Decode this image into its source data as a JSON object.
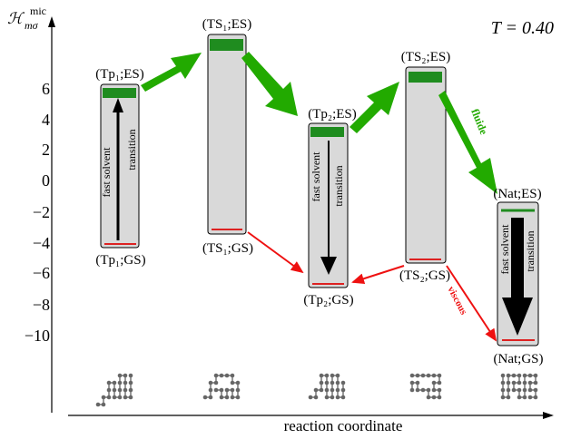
{
  "header": {
    "temperature": "T = 0.40"
  },
  "axes": {
    "y_label_main": "ℋ",
    "y_label_super": "mic",
    "y_label_sub": "mσ",
    "y_ticks": [
      "6",
      "4",
      "2",
      "0",
      "−2",
      "−4",
      "−6",
      "−8",
      "−10"
    ],
    "x_label": "reaction coordinate"
  },
  "states": {
    "tp1_es": "(Tp₁;ES)",
    "tp1_gs": "(Tp₁;GS)",
    "ts1_es": "(TS₁;ES)",
    "ts1_gs": "(TS₁;GS)",
    "tp2_es": "(Tp₂;ES)",
    "tp2_gs": "(Tp₂;GS)",
    "ts2_es": "(TS₂;ES)",
    "ts2_gs": "(TS₂;GS)",
    "nat_es": "(Nat;ES)",
    "nat_gs": "(Nat;GS)"
  },
  "annotations": {
    "fast_solvent": "fast solvent",
    "transition": "transition",
    "fluide": "fluide",
    "viscous": "viscous"
  },
  "colors": {
    "green": "#22aa00",
    "red": "#ee1111",
    "box_fill": "#d9d9d9",
    "es_bar": "#1f8c1f",
    "gs_line": "#dd2222"
  }
}
